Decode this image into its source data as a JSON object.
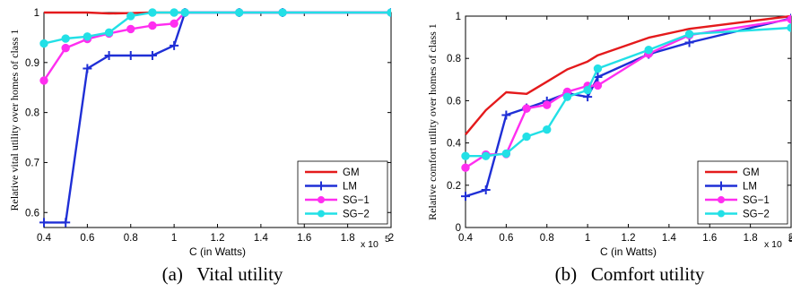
{
  "chart_data": [
    {
      "type": "line",
      "caption": "(a)   Vital utility",
      "xlabel": "C (in Watts)",
      "ylabel": "Relative vital utility over homes of class 1",
      "x_multiplier": "x 10",
      "x_multiplier_exp": "5",
      "xlim": [
        0.4,
        2
      ],
      "ylim": [
        0.57,
        1
      ],
      "xticks": [
        "0.4",
        "0.6",
        "0.8",
        "1",
        "1.2",
        "1.4",
        "1.6",
        "1.8",
        "2"
      ],
      "xtick_values": [
        0.4,
        0.6,
        0.8,
        1,
        1.2,
        1.4,
        1.6,
        1.8,
        2
      ],
      "yticks": [
        "0.6",
        "0.7",
        "0.8",
        "0.9",
        "1"
      ],
      "ytick_values": [
        0.6,
        0.7,
        0.8,
        0.9,
        1
      ],
      "legend": "bottom-right",
      "series": [
        {
          "name": "GM",
          "color": "#e41a1c",
          "marker": "none",
          "x": [
            0.4,
            0.5,
            0.6,
            0.7,
            0.8,
            0.9,
            1.0,
            1.05,
            1.3,
            1.5,
            2.0
          ],
          "y": [
            1.0,
            1.0,
            1.0,
            0.998,
            0.999,
            1.0,
            1.0,
            1.0,
            1.0,
            1.0,
            1.0
          ]
        },
        {
          "name": "LM",
          "color": "#1f2fd6",
          "marker": "plus",
          "x": [
            0.4,
            0.5,
            0.6,
            0.7,
            0.8,
            0.9,
            1.0,
            1.05,
            1.3,
            1.5,
            2.0
          ],
          "y": [
            0.58,
            0.58,
            0.888,
            0.914,
            0.914,
            0.914,
            0.934,
            1.0,
            1.0,
            1.0,
            1.0
          ]
        },
        {
          "name": "SG−1",
          "color": "#ff2ef0",
          "marker": "circle",
          "x": [
            0.4,
            0.5,
            0.6,
            0.7,
            0.8,
            0.9,
            1.0,
            1.05,
            1.3,
            1.5,
            2.0
          ],
          "y": [
            0.864,
            0.929,
            0.947,
            0.958,
            0.967,
            0.974,
            0.978,
            1.0,
            1.0,
            1.0,
            1.0
          ]
        },
        {
          "name": "SG−2",
          "color": "#22e0e6",
          "marker": "circle",
          "x": [
            0.4,
            0.5,
            0.6,
            0.7,
            0.8,
            0.9,
            1.0,
            1.05,
            1.3,
            1.5,
            2.0
          ],
          "y": [
            0.938,
            0.948,
            0.952,
            0.96,
            0.993,
            1.0,
            1.0,
            1.0,
            1.0,
            1.0,
            1.0
          ]
        }
      ]
    },
    {
      "type": "line",
      "caption": "(b)   Comfort utility",
      "xlabel": "C (in Watts)",
      "ylabel": "Relative comfort utility over homes of class 1",
      "x_multiplier": "x 10",
      "x_multiplier_exp": "5",
      "xlim": [
        0.4,
        2
      ],
      "ylim": [
        0,
        1
      ],
      "xticks": [
        "0.4",
        "0.6",
        "0.8",
        "1",
        "1.2",
        "1.4",
        "1.6",
        "1.8",
        "2"
      ],
      "xtick_values": [
        0.4,
        0.6,
        0.8,
        1,
        1.2,
        1.4,
        1.6,
        1.8,
        2
      ],
      "yticks": [
        "0",
        "0.2",
        "0.4",
        "0.6",
        "0.8",
        "1"
      ],
      "ytick_values": [
        0,
        0.2,
        0.4,
        0.6,
        0.8,
        1
      ],
      "legend": "bottom-right",
      "series": [
        {
          "name": "GM",
          "color": "#e41a1c",
          "marker": "none",
          "x": [
            0.4,
            0.5,
            0.6,
            0.7,
            0.8,
            0.9,
            1.0,
            1.05,
            1.3,
            1.5,
            2.0
          ],
          "y": [
            0.44,
            0.555,
            0.64,
            0.632,
            0.69,
            0.748,
            0.785,
            0.815,
            0.898,
            0.94,
            1.0
          ]
        },
        {
          "name": "LM",
          "color": "#1f2fd6",
          "marker": "plus",
          "x": [
            0.4,
            0.5,
            0.6,
            0.7,
            0.8,
            0.9,
            1.0,
            1.05,
            1.3,
            1.5,
            2.0
          ],
          "y": [
            0.148,
            0.178,
            0.532,
            0.565,
            0.598,
            0.635,
            0.618,
            0.712,
            0.82,
            0.875,
            0.99
          ]
        },
        {
          "name": "SG−1",
          "color": "#ff2ef0",
          "marker": "circle",
          "x": [
            0.4,
            0.5,
            0.6,
            0.7,
            0.8,
            0.9,
            1.0,
            1.05,
            1.3,
            1.5,
            2.0
          ],
          "y": [
            0.283,
            0.345,
            0.348,
            0.563,
            0.58,
            0.642,
            0.67,
            0.672,
            0.822,
            0.91,
            0.985
          ]
        },
        {
          "name": "SG−2",
          "color": "#22e0e6",
          "marker": "circle",
          "x": [
            0.4,
            0.5,
            0.6,
            0.7,
            0.8,
            0.9,
            1.0,
            1.05,
            1.3,
            1.5,
            2.0
          ],
          "y": [
            0.338,
            0.338,
            0.35,
            0.43,
            0.463,
            0.618,
            0.65,
            0.752,
            0.84,
            0.915,
            0.945
          ]
        }
      ]
    }
  ]
}
